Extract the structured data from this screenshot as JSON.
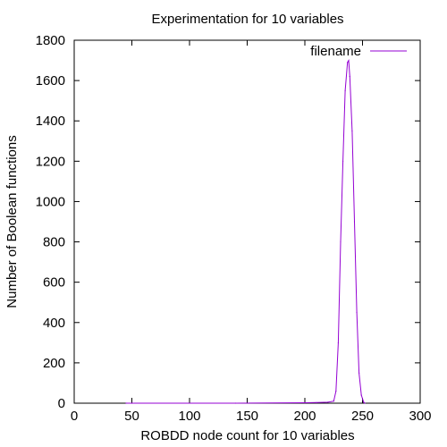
{
  "chart_data": {
    "type": "line",
    "title": "Experimentation for 10 variables",
    "xlabel": "ROBDD node count for 10 variables",
    "ylabel": "Number of Boolean functions",
    "xlim": [
      0,
      300
    ],
    "ylim": [
      0,
      1800
    ],
    "x_ticks": [
      "0",
      "50",
      "100",
      "150",
      "200",
      "250",
      "300"
    ],
    "y_ticks": [
      "0",
      "200",
      "400",
      "600",
      "800",
      "1000",
      "1200",
      "1400",
      "1600",
      "1800"
    ],
    "grid": false,
    "legend_position": "top-right",
    "series": [
      {
        "name": "filename",
        "color": "#9400d3",
        "x": [
          45,
          50,
          140,
          200,
          210,
          220,
          225,
          227,
          229,
          231,
          233,
          235,
          237,
          238,
          239,
          241,
          243,
          245,
          247,
          249,
          251,
          252
        ],
        "y": [
          0,
          0,
          0,
          2,
          3,
          5,
          10,
          60,
          300,
          800,
          1200,
          1550,
          1690,
          1700,
          1620,
          1350,
          900,
          450,
          150,
          40,
          5,
          0
        ]
      }
    ]
  }
}
